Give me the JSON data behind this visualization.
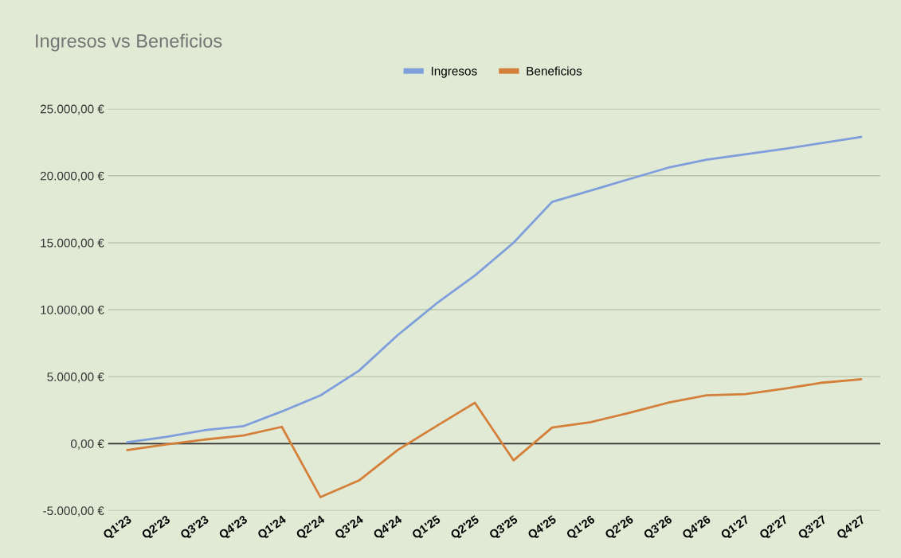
{
  "chart_data": {
    "type": "line",
    "title": "Ingresos vs Beneficios",
    "categories": [
      "Q1'23",
      "Q2'23",
      "Q3'23",
      "Q4'23",
      "Q1'24",
      "Q2'24",
      "Q3'24",
      "Q4'24",
      "Q1'25",
      "Q2'25",
      "Q3'25",
      "Q4'25",
      "Q1'26",
      "Q2'26",
      "Q3'26",
      "Q4'26",
      "Q1'27",
      "Q2'27",
      "Q3'27",
      "Q4'27"
    ],
    "series": [
      {
        "name": "Ingresos",
        "color": "#7f9fdc",
        "values": [
          100,
          500,
          1000,
          1300,
          2400,
          3600,
          5450,
          8100,
          10450,
          12550,
          15000,
          18050,
          18900,
          19750,
          20600,
          21200,
          21600,
          22000,
          22450,
          22900
        ]
      },
      {
        "name": "Beneficios",
        "color": "#d4803a",
        "values": [
          -480,
          -60,
          300,
          600,
          1250,
          -4000,
          -2750,
          -480,
          1300,
          3050,
          -1250,
          1200,
          1600,
          2300,
          3050,
          3600,
          3700,
          4100,
          4550,
          4800
        ]
      }
    ],
    "ylim": [
      -5000,
      25000
    ],
    "yticks": [
      {
        "value": -5000,
        "label": "-5.000,00 €"
      },
      {
        "value": 0,
        "label": "0,00 €"
      },
      {
        "value": 5000,
        "label": "5.000,00 €"
      },
      {
        "value": 10000,
        "label": "10.000,00 €"
      },
      {
        "value": 15000,
        "label": "15.000,00 €"
      },
      {
        "value": 20000,
        "label": "20.000,00 €"
      },
      {
        "value": 25000,
        "label": "25.000,00 €"
      }
    ],
    "ref_lines": [
      {
        "axis": "y",
        "value": 0,
        "color": "#333333"
      }
    ],
    "grid": "y",
    "legend": "top",
    "marker": "none",
    "line_style": "solid"
  }
}
